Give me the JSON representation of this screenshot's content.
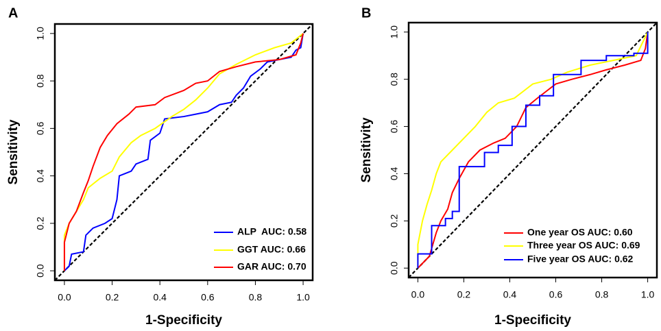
{
  "chart_data": [
    {
      "type": "line",
      "panel_label": "A",
      "x_label": "1-Specificity",
      "y_label": "Sensitivity",
      "xlim": [
        -0.04,
        1.04
      ],
      "ylim": [
        -0.04,
        1.04
      ],
      "xticks": [
        {
          "value": 0,
          "label": "0.0"
        },
        0.2,
        0.4,
        0.6,
        0.8,
        {
          "value": 1,
          "label": "1.0"
        }
      ],
      "yticks": [
        {
          "value": 0,
          "label": "0.0"
        },
        0.2,
        0.4,
        0.6,
        0.8,
        {
          "value": 1,
          "label": "1.0"
        }
      ],
      "legend": "bottom right",
      "series": [
        {
          "name": "ALP  AUC: 0.58",
          "color": "#0000ff",
          "x": [
            0,
            0.02,
            0.03,
            0.08,
            0.09,
            0.12,
            0.17,
            0.2,
            0.22,
            0.23,
            0.28,
            0.3,
            0.35,
            0.36,
            0.4,
            0.42,
            0.5,
            0.55,
            0.6,
            0.65,
            0.7,
            0.72,
            0.75,
            0.78,
            0.82,
            0.85,
            0.9,
            0.95,
            0.97,
            0.99,
            1
          ],
          "values": [
            0,
            0.02,
            0.07,
            0.08,
            0.15,
            0.18,
            0.2,
            0.22,
            0.3,
            0.4,
            0.42,
            0.45,
            0.47,
            0.55,
            0.58,
            0.64,
            0.65,
            0.66,
            0.67,
            0.7,
            0.71,
            0.74,
            0.77,
            0.82,
            0.85,
            0.88,
            0.89,
            0.9,
            0.93,
            0.94,
            1
          ]
        },
        {
          "name": "GGT AUC: 0.66",
          "color": "#ffff00",
          "x": [
            0,
            0,
            0.02,
            0.05,
            0.08,
            0.1,
            0.15,
            0.2,
            0.23,
            0.28,
            0.32,
            0.38,
            0.45,
            0.5,
            0.55,
            0.6,
            0.65,
            0.72,
            0.8,
            0.88,
            0.95,
            1
          ],
          "values": [
            0,
            0.15,
            0.2,
            0.25,
            0.3,
            0.35,
            0.39,
            0.42,
            0.48,
            0.54,
            0.57,
            0.6,
            0.65,
            0.68,
            0.72,
            0.77,
            0.83,
            0.87,
            0.91,
            0.94,
            0.96,
            1
          ]
        },
        {
          "name": "GAR AUC: 0.70",
          "color": "#ff0000",
          "x": [
            0,
            0,
            0.02,
            0.05,
            0.08,
            0.1,
            0.12,
            0.15,
            0.18,
            0.22,
            0.27,
            0.3,
            0.38,
            0.42,
            0.5,
            0.55,
            0.6,
            0.65,
            0.72,
            0.8,
            0.9,
            0.97,
            0.99,
            1
          ],
          "values": [
            0,
            0.12,
            0.2,
            0.25,
            0.33,
            0.38,
            0.44,
            0.52,
            0.57,
            0.62,
            0.66,
            0.69,
            0.7,
            0.73,
            0.76,
            0.79,
            0.8,
            0.84,
            0.86,
            0.88,
            0.89,
            0.91,
            0.96,
            1
          ]
        }
      ]
    },
    {
      "type": "line",
      "panel_label": "B",
      "x_label": "1-Specificity",
      "y_label": "Sensitivity",
      "xlim": [
        -0.04,
        1.04
      ],
      "ylim": [
        -0.04,
        1.04
      ],
      "xticks": [
        {
          "value": 0,
          "label": "0.0"
        },
        0.2,
        0.4,
        0.6,
        0.8,
        {
          "value": 1,
          "label": "1.0"
        }
      ],
      "yticks": [
        {
          "value": 0,
          "label": "0.0"
        },
        0.2,
        0.4,
        0.6,
        0.8,
        {
          "value": 1,
          "label": "1.0"
        }
      ],
      "legend": "bottom right",
      "series": [
        {
          "name": "One year OS AUC: 0.60",
          "color": "#ff0000",
          "x": [
            0,
            0.05,
            0.08,
            0.1,
            0.13,
            0.15,
            0.18,
            0.22,
            0.27,
            0.33,
            0.38,
            0.43,
            0.47,
            0.52,
            0.56,
            0.6,
            0.67,
            0.75,
            0.82,
            0.9,
            0.97,
            0.99,
            1
          ],
          "values": [
            0,
            0.05,
            0.15,
            0.2,
            0.25,
            0.32,
            0.38,
            0.45,
            0.5,
            0.53,
            0.55,
            0.6,
            0.68,
            0.72,
            0.75,
            0.78,
            0.8,
            0.82,
            0.84,
            0.86,
            0.88,
            0.93,
            1
          ]
        },
        {
          "name": "Three year OS AUC: 0.69",
          "color": "#ffff00",
          "x": [
            0,
            0,
            0.02,
            0.04,
            0.06,
            0.08,
            0.1,
            0.15,
            0.2,
            0.25,
            0.3,
            0.35,
            0.42,
            0.5,
            0.58,
            0.65,
            0.75,
            0.85,
            0.95,
            1
          ],
          "values": [
            0,
            0.1,
            0.2,
            0.27,
            0.33,
            0.4,
            0.45,
            0.5,
            0.55,
            0.6,
            0.66,
            0.7,
            0.72,
            0.78,
            0.8,
            0.83,
            0.86,
            0.88,
            0.9,
            1
          ]
        },
        {
          "name": "Five year OS AUC: 0.62",
          "color": "#0000ff",
          "x": [
            0,
            0,
            0.06,
            0.06,
            0.12,
            0.12,
            0.15,
            0.15,
            0.18,
            0.18,
            0.29,
            0.29,
            0.35,
            0.35,
            0.41,
            0.41,
            0.47,
            0.47,
            0.53,
            0.53,
            0.59,
            0.59,
            0.71,
            0.71,
            0.82,
            0.82,
            0.94,
            0.94,
            1,
            1
          ],
          "values": [
            0,
            0.06,
            0.06,
            0.18,
            0.18,
            0.21,
            0.21,
            0.24,
            0.24,
            0.43,
            0.43,
            0.49,
            0.49,
            0.52,
            0.52,
            0.6,
            0.6,
            0.69,
            0.69,
            0.73,
            0.73,
            0.82,
            0.82,
            0.88,
            0.88,
            0.9,
            0.9,
            0.91,
            0.91,
            1
          ]
        }
      ]
    }
  ]
}
